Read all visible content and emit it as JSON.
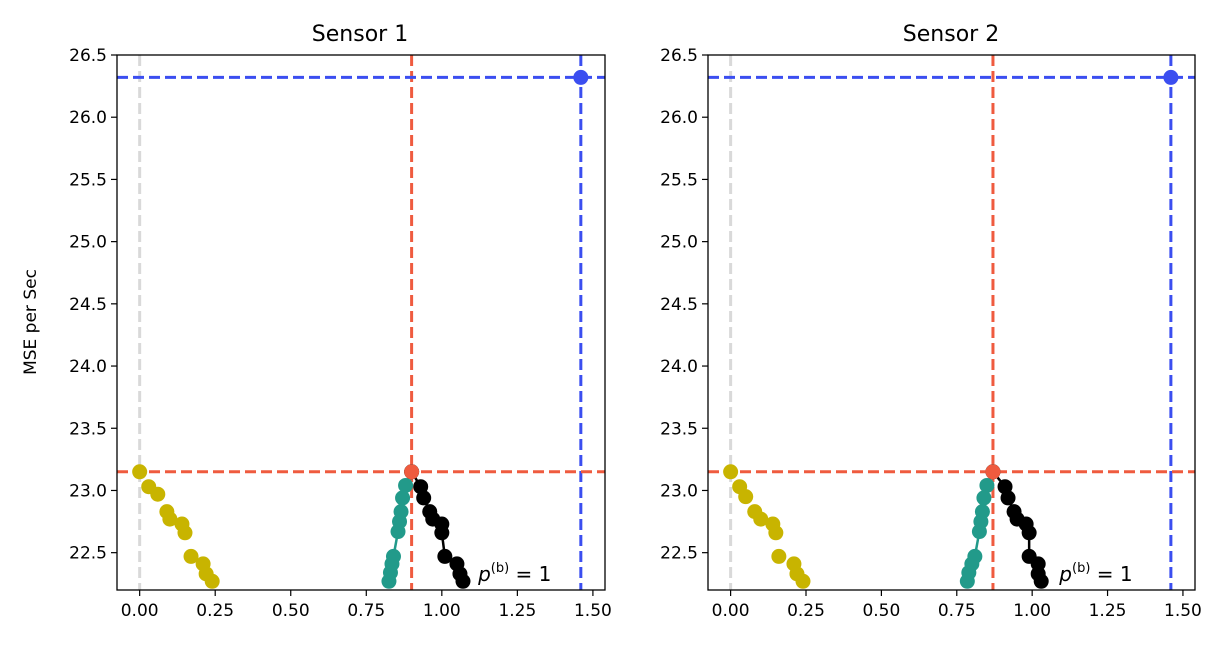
{
  "chart_data": [
    {
      "type": "scatter",
      "title": "Sensor 1",
      "xlabel": "",
      "ylabel": "MSE per Sec",
      "xlim": [
        -0.075,
        1.54
      ],
      "ylim": [
        22.2,
        26.5
      ],
      "x_ticks": [
        0.0,
        0.25,
        0.5,
        0.75,
        1.0,
        1.25,
        1.5
      ],
      "x_tick_labels": [
        "0.00",
        "0.25",
        "0.50",
        "0.75",
        "1.00",
        "1.25",
        "1.50"
      ],
      "y_ticks": [
        22.5,
        23.0,
        23.5,
        24.0,
        24.5,
        25.0,
        25.5,
        26.0,
        26.5
      ],
      "y_tick_labels": [
        "22.5",
        "23.0",
        "23.5",
        "24.0",
        "24.5",
        "25.0",
        "25.5",
        "26.0",
        "26.5"
      ],
      "grid": false,
      "reference_lines": [
        {
          "orientation": "vertical",
          "value": 0.0,
          "color": "#d9d9d9"
        },
        {
          "orientation": "vertical",
          "value": 0.9,
          "color": "#ef5b3f"
        },
        {
          "orientation": "vertical",
          "value": 1.46,
          "color": "#3b4ef0"
        },
        {
          "orientation": "horizontal",
          "value": 23.15,
          "color": "#ef5b3f"
        },
        {
          "orientation": "horizontal",
          "value": 26.32,
          "color": "#3b4ef0"
        }
      ],
      "series": [
        {
          "color": "#c8b400",
          "connected": false,
          "x": [
            0.0,
            0.03,
            0.06,
            0.09,
            0.1,
            0.14,
            0.15,
            0.17,
            0.21,
            0.22,
            0.24
          ],
          "y": [
            23.15,
            23.03,
            22.97,
            22.83,
            22.77,
            22.73,
            22.66,
            22.47,
            22.41,
            22.33,
            22.27
          ]
        },
        {
          "color": "#229a8a",
          "connected": true,
          "x": [
            0.9,
            0.88,
            0.87,
            0.865,
            0.86,
            0.855,
            0.84,
            0.835,
            0.83,
            0.825
          ],
          "y": [
            23.15,
            23.04,
            22.94,
            22.83,
            22.75,
            22.67,
            22.47,
            22.41,
            22.34,
            22.27
          ]
        },
        {
          "color": "#000000",
          "connected": true,
          "x": [
            0.9,
            0.93,
            0.94,
            0.96,
            0.97,
            1.0,
            1.0,
            1.01,
            1.05,
            1.06,
            1.07
          ],
          "y": [
            23.15,
            23.03,
            22.94,
            22.83,
            22.77,
            22.73,
            22.66,
            22.47,
            22.41,
            22.33,
            22.27
          ]
        },
        {
          "color": "#ef5b3f",
          "connected": false,
          "x": [
            0.9
          ],
          "y": [
            23.15
          ]
        },
        {
          "color": "#3b4ef0",
          "connected": false,
          "x": [
            1.46
          ],
          "y": [
            26.32
          ]
        }
      ],
      "annotation": {
        "base": "p",
        "sup": "(b)",
        "rest": " = 1",
        "x": 1.12,
        "y": 22.33
      }
    },
    {
      "type": "scatter",
      "title": "Sensor 2",
      "xlabel": "",
      "ylabel": "",
      "xlim": [
        -0.075,
        1.54
      ],
      "ylim": [
        22.2,
        26.5
      ],
      "x_ticks": [
        0.0,
        0.25,
        0.5,
        0.75,
        1.0,
        1.25,
        1.5
      ],
      "x_tick_labels": [
        "0.00",
        "0.25",
        "0.50",
        "0.75",
        "1.00",
        "1.25",
        "1.50"
      ],
      "y_ticks": [
        22.5,
        23.0,
        23.5,
        24.0,
        24.5,
        25.0,
        25.5,
        26.0,
        26.5
      ],
      "y_tick_labels": [
        "22.5",
        "23.0",
        "23.5",
        "24.0",
        "24.5",
        "25.0",
        "25.5",
        "26.0",
        "26.5"
      ],
      "grid": false,
      "reference_lines": [
        {
          "orientation": "vertical",
          "value": 0.0,
          "color": "#d9d9d9"
        },
        {
          "orientation": "vertical",
          "value": 0.87,
          "color": "#ef5b3f"
        },
        {
          "orientation": "vertical",
          "value": 1.46,
          "color": "#3b4ef0"
        },
        {
          "orientation": "horizontal",
          "value": 23.15,
          "color": "#ef5b3f"
        },
        {
          "orientation": "horizontal",
          "value": 26.32,
          "color": "#3b4ef0"
        }
      ],
      "series": [
        {
          "color": "#c8b400",
          "connected": false,
          "x": [
            0.0,
            0.03,
            0.05,
            0.08,
            0.1,
            0.14,
            0.15,
            0.16,
            0.21,
            0.22,
            0.24
          ],
          "y": [
            23.15,
            23.03,
            22.95,
            22.83,
            22.77,
            22.73,
            22.66,
            22.47,
            22.41,
            22.33,
            22.27
          ]
        },
        {
          "color": "#229a8a",
          "connected": true,
          "x": [
            0.87,
            0.85,
            0.84,
            0.835,
            0.83,
            0.825,
            0.81,
            0.8,
            0.79,
            0.785
          ],
          "y": [
            23.15,
            23.04,
            22.94,
            22.83,
            22.75,
            22.67,
            22.47,
            22.41,
            22.34,
            22.27
          ]
        },
        {
          "color": "#000000",
          "connected": true,
          "x": [
            0.87,
            0.91,
            0.92,
            0.94,
            0.95,
            0.98,
            0.99,
            0.99,
            1.02,
            1.02,
            1.03
          ],
          "y": [
            23.15,
            23.03,
            22.94,
            22.83,
            22.77,
            22.73,
            22.66,
            22.47,
            22.41,
            22.33,
            22.27
          ]
        },
        {
          "color": "#ef5b3f",
          "connected": false,
          "x": [
            0.87
          ],
          "y": [
            23.15
          ]
        },
        {
          "color": "#3b4ef0",
          "connected": false,
          "x": [
            1.46
          ],
          "y": [
            26.32
          ]
        }
      ],
      "annotation": {
        "base": "p",
        "sup": "(b)",
        "rest": " = 1",
        "x": 1.09,
        "y": 22.33
      }
    }
  ]
}
